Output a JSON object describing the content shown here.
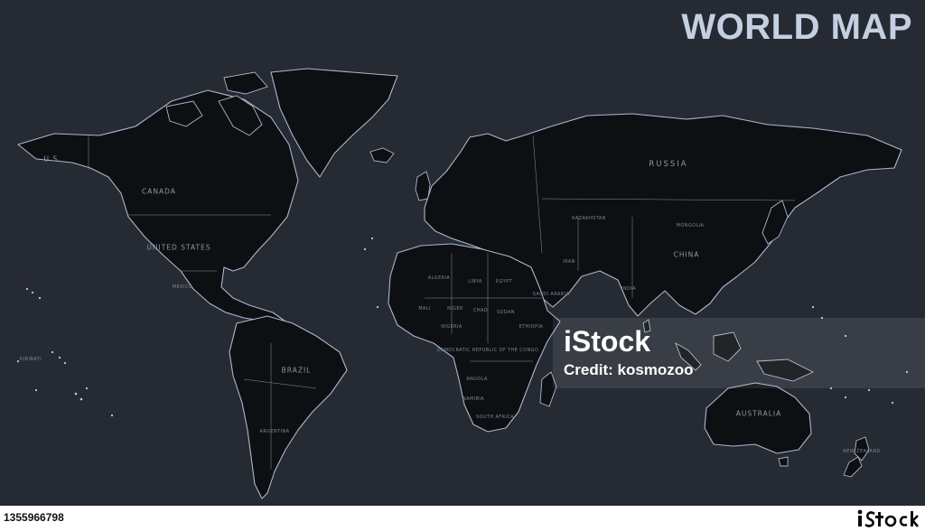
{
  "title": "WORLD MAP",
  "colors": {
    "ocean": "#262a33",
    "land": "#0d0f12",
    "coastline": "#aab8cc",
    "title": "#c4d0e2",
    "label": "#8f9aab"
  },
  "labels": {
    "us": "U.S.",
    "canada": "CANADA",
    "united_states": "UNITED STATES",
    "mexico": "MEXICO",
    "brazil": "BRAZIL",
    "argentina": "ARGENTINA",
    "kiribati": "KIRIBATI",
    "russia": "RUSSIA",
    "kazakhstan": "KAZAKHSTAN",
    "mongolia": "MONGOLIA",
    "china": "CHINA",
    "india": "INDIA",
    "iran": "IRAN",
    "algeria": "ALGERIA",
    "libya": "LIBYA",
    "egypt": "EGYPT",
    "saudi_arabia": "SAUDI ARABIA",
    "niger": "NIGER",
    "chad": "CHAD",
    "sudan": "SUDAN",
    "mali": "MALI",
    "nigeria": "NIGERIA",
    "ethiopia": "ETHIOPIA",
    "drc": "DEMOCRATIC REPUBLIC OF THE CONGO",
    "angola": "ANGOLA",
    "namibia": "NAMIBIA",
    "south_africa": "SOUTH AFRICA",
    "australia": "AUSTRALIA",
    "new_zealand": "NEW ZEALAND"
  },
  "watermark": {
    "logo": "iStock",
    "credit": "Credit: kosmozoo"
  },
  "footer": {
    "image_id": "1355966798",
    "brand_icon": "istock-logo-icon"
  }
}
